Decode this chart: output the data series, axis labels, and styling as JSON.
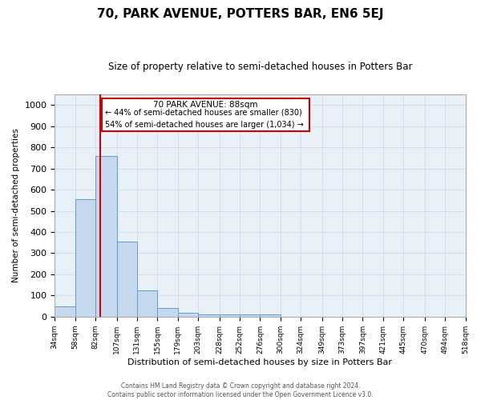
{
  "title": "70, PARK AVENUE, POTTERS BAR, EN6 5EJ",
  "subtitle": "Size of property relative to semi-detached houses in Potters Bar",
  "xlabel": "Distribution of semi-detached houses by size in Potters Bar",
  "ylabel": "Number of semi-detached properties",
  "footer_line1": "Contains HM Land Registry data © Crown copyright and database right 2024.",
  "footer_line2": "Contains public sector information licensed under the Open Government Licence v3.0.",
  "property_label": "70 PARK AVENUE: 88sqm",
  "pct_smaller": "44% of semi-detached houses are smaller (830)",
  "pct_larger": "54% of semi-detached houses are larger (1,034)",
  "property_size": 88,
  "bin_edges": [
    34,
    58,
    82,
    107,
    131,
    155,
    179,
    203,
    228,
    252,
    276,
    300,
    324,
    349,
    373,
    397,
    421,
    445,
    470,
    494,
    518
  ],
  "bin_labels": [
    "34sqm",
    "58sqm",
    "82sqm",
    "107sqm",
    "131sqm",
    "155sqm",
    "179sqm",
    "203sqm",
    "228sqm",
    "252sqm",
    "276sqm",
    "300sqm",
    "324sqm",
    "349sqm",
    "373sqm",
    "397sqm",
    "421sqm",
    "445sqm",
    "470sqm",
    "494sqm",
    "518sqm"
  ],
  "bar_heights": [
    50,
    555,
    760,
    355,
    125,
    40,
    18,
    10,
    10,
    10,
    10,
    0,
    0,
    0,
    0,
    0,
    0,
    0,
    0,
    0
  ],
  "bar_color": "#c5d8ed",
  "bar_edgecolor": "#5a9fd4",
  "grid_color": "#c8d8e8",
  "bg_color": "#e8f0f8",
  "redline_color": "#cc0000",
  "annotation_box_color": "#cc0000",
  "ylim": [
    0,
    1050
  ],
  "yticks": [
    0,
    100,
    200,
    300,
    400,
    500,
    600,
    700,
    800,
    900,
    1000
  ]
}
